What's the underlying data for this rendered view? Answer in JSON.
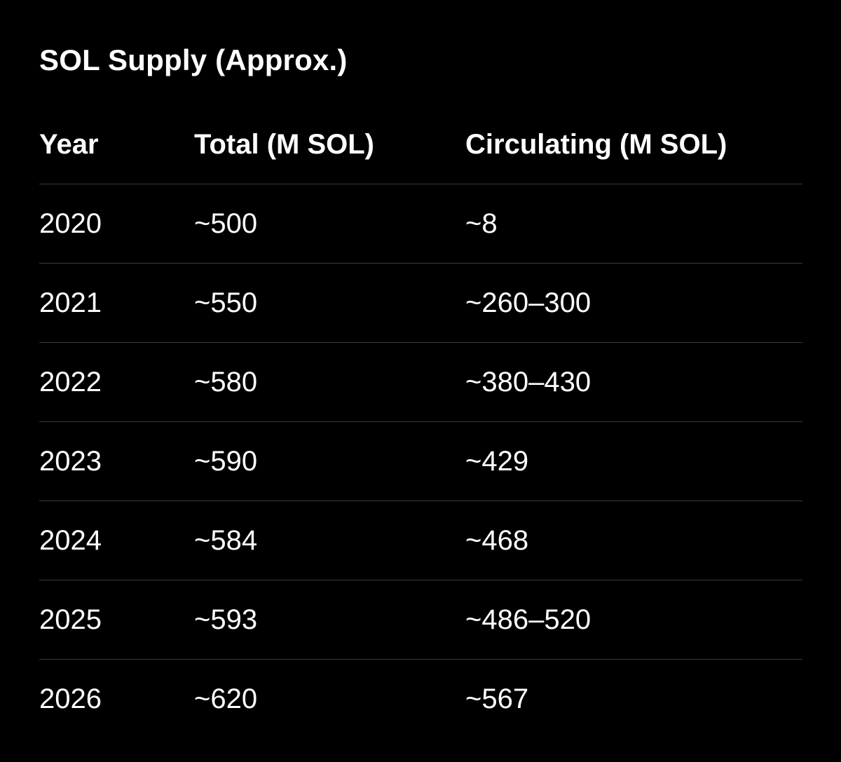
{
  "title": "SOL Supply (Approx.)",
  "table": {
    "columns": [
      "Year",
      "Total (M SOL)",
      "Circulating (M SOL)"
    ],
    "rows": [
      [
        "2020",
        "~500",
        "~8"
      ],
      [
        "2021",
        "~550",
        "~260–300"
      ],
      [
        "2022",
        "~580",
        "~380–430"
      ],
      [
        "2023",
        "~590",
        "~429"
      ],
      [
        "2024",
        "~584",
        "~468"
      ],
      [
        "2025",
        "~593",
        "~486–520"
      ],
      [
        "2026",
        "~620",
        "~567"
      ]
    ]
  },
  "colors": {
    "background": "#000000",
    "text": "#ffffff",
    "divider": "#3a3a3a"
  }
}
